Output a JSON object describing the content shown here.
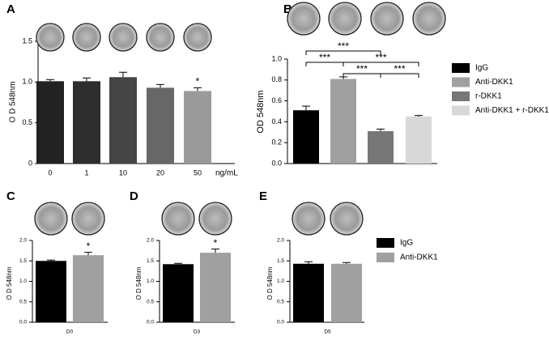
{
  "chart_data": [
    {
      "panel": "A",
      "type": "bar",
      "ylabel": "O D 548nm",
      "xlabel": "ng/mL",
      "categories": [
        "0",
        "1",
        "10",
        "20",
        "50"
      ],
      "values": [
        1.01,
        1.01,
        1.06,
        0.93,
        0.89
      ],
      "errors": [
        0.02,
        0.04,
        0.06,
        0.04,
        0.04
      ],
      "colors": [
        "#222222",
        "#2e2e2e",
        "#454545",
        "#676767",
        "#9a9a9a"
      ],
      "ylim": [
        0,
        1.5
      ],
      "yticks": [
        0,
        0.5,
        {
          "value": 1,
          "label": "1.0"
        },
        1.5
      ],
      "annotations": [
        {
          "text": "*",
          "bar": 4
        }
      ]
    },
    {
      "panel": "B",
      "type": "bar",
      "ylabel": "OD 548nm",
      "legend": "right",
      "series": [
        {
          "name": "IgG",
          "color": "#000000",
          "values": [
            0.51
          ],
          "errors": [
            0.04
          ]
        },
        {
          "name": "Anti-DKK1",
          "color": "#a0a0a0",
          "values": [
            0.81
          ],
          "errors": [
            0.02
          ]
        },
        {
          "name": "r-DKK1",
          "color": "#777777",
          "values": [
            0.31
          ],
          "errors": [
            0.02
          ]
        },
        {
          "name": "Anti-DKK1 + r-DKK1",
          "color": "#d8d8d8",
          "values": [
            0.45
          ],
          "errors": [
            0.01
          ]
        }
      ],
      "ylim": [
        0,
        1
      ],
      "yticks": [
        {
          "value": 0,
          "label": "0.0"
        },
        0.2,
        0.4,
        0.6,
        0.8,
        {
          "value": 1,
          "label": "1.0"
        }
      ],
      "brackets": [
        {
          "text": "***",
          "from": 0,
          "to": 2
        },
        {
          "text": "***",
          "from": 0,
          "to": 1
        },
        {
          "text": "***",
          "from": 1,
          "to": 3
        },
        {
          "text": "***",
          "from": 1,
          "to": 2
        },
        {
          "text": "***",
          "from": 2,
          "to": 3
        }
      ]
    },
    {
      "panel": "C",
      "type": "bar",
      "ylabel": "O D 548nm",
      "categories": [
        "D0"
      ],
      "series": [
        {
          "color": "#000000",
          "values": [
            1.5
          ],
          "errors": [
            0.02
          ]
        },
        {
          "color": "#a0a0a0",
          "values": [
            1.64
          ],
          "errors": [
            0.07
          ]
        }
      ],
      "ylim": [
        0,
        2
      ],
      "yticks": [
        {
          "value": 0,
          "label": "0.0"
        },
        0.5,
        {
          "value": 1,
          "label": "1.0"
        },
        1.5,
        {
          "value": 2,
          "label": "2.0"
        }
      ],
      "annotations": [
        {
          "text": "*",
          "bar": 1
        }
      ]
    },
    {
      "panel": "D",
      "type": "bar",
      "ylabel": "O D 548nm",
      "categories": [
        "D3"
      ],
      "series": [
        {
          "color": "#000000",
          "values": [
            1.42
          ],
          "errors": [
            0.02
          ]
        },
        {
          "color": "#a0a0a0",
          "values": [
            1.7
          ],
          "errors": [
            0.09
          ]
        }
      ],
      "ylim": [
        0,
        2
      ],
      "yticks": [
        {
          "value": 0,
          "label": "0.0"
        },
        0.5,
        {
          "value": 1,
          "label": "1.0"
        },
        1.5,
        {
          "value": 2,
          "label": "2.0"
        }
      ],
      "annotations": [
        {
          "text": "*",
          "bar": 1
        }
      ]
    },
    {
      "panel": "E",
      "type": "bar",
      "ylabel": "O D 548nm",
      "categories": [
        "D5"
      ],
      "legend": "left",
      "series": [
        {
          "name": "IgG",
          "color": "#000000",
          "values": [
            1.43
          ],
          "errors": [
            0.05
          ]
        },
        {
          "name": "Anti-DKK1",
          "color": "#a0a0a0",
          "values": [
            1.43
          ],
          "errors": [
            0.03
          ]
        }
      ],
      "ylim": [
        0,
        2
      ],
      "yticks": [
        {
          "value": 0,
          "label": "0.0"
        },
        0.5,
        {
          "value": 1,
          "label": "1.0"
        },
        1.5,
        {
          "value": 2,
          "label": "2.0"
        }
      ]
    }
  ]
}
